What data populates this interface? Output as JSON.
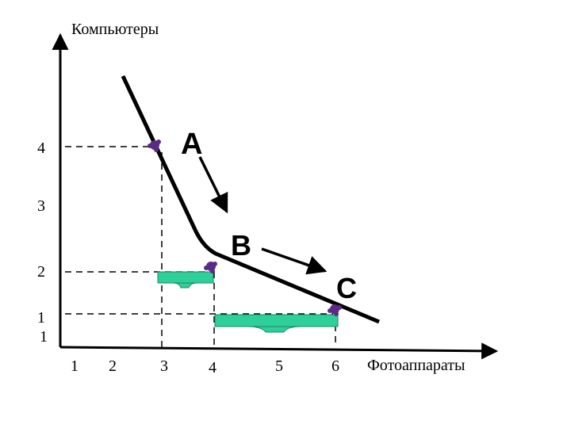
{
  "axes": {
    "y_label": "Компьютеры",
    "x_label": "Фотоаппараты",
    "y_ticks": [
      "4",
      "3",
      "2",
      "1",
      "1"
    ],
    "x_ticks": [
      "1",
      "2",
      "3",
      "4",
      "5",
      "6"
    ]
  },
  "points": {
    "a": "A",
    "b": "B",
    "c": "C"
  },
  "colors": {
    "curve": "#000000",
    "marker": "#5b2a86",
    "brace_fill": "#2fcf9a",
    "brace_stroke": "#1a8a63"
  }
}
